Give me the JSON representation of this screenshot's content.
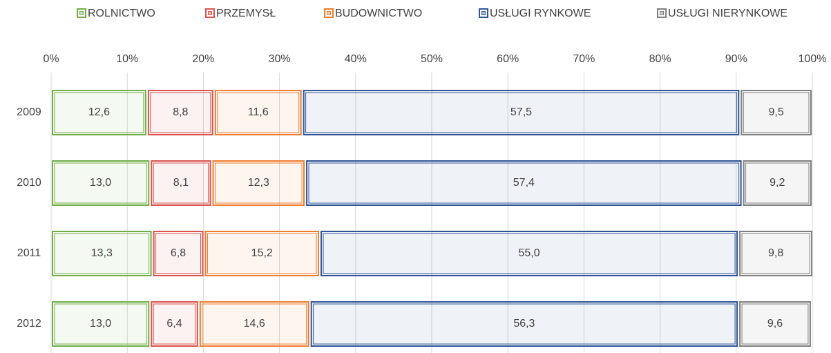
{
  "chart_data": {
    "type": "stacked_bar_horizontal",
    "categories": [
      "2009",
      "2010",
      "2011",
      "2012"
    ],
    "series": [
      {
        "name": "ROLNICTWO",
        "color": "#70ad47",
        "values": [
          12.6,
          13.0,
          13.3,
          13.0
        ],
        "value_labels": [
          "12,6",
          "13,0",
          "13,3",
          "13,0"
        ]
      },
      {
        "name": "PRZEMYSŁ",
        "color": "#d9534f",
        "values": [
          8.8,
          8.1,
          6.8,
          6.4
        ],
        "value_labels": [
          "8,8",
          "8,1",
          "6,8",
          "6,4"
        ]
      },
      {
        "name": "BUDOWNICTWO",
        "color": "#ed7d31",
        "values": [
          11.6,
          12.3,
          15.2,
          14.6
        ],
        "value_labels": [
          "11,6",
          "12,3",
          "15,2",
          "14,6"
        ]
      },
      {
        "name": "USŁUGI RYNKOWE",
        "color": "#2f5597",
        "values": [
          57.5,
          57.4,
          55.0,
          56.3
        ],
        "value_labels": [
          "57,5",
          "57,4",
          "55,0",
          "56,3"
        ]
      },
      {
        "name": "USŁUGI NIERYNKOWE",
        "color": "#7f7f7f",
        "values": [
          9.5,
          9.2,
          9.8,
          9.6
        ],
        "value_labels": [
          "9,5",
          "9,2",
          "9,8",
          "9,6"
        ]
      }
    ],
    "xlim": [
      0,
      100
    ],
    "xticks": [
      {
        "value": 0,
        "label": "0%"
      },
      {
        "value": 10,
        "label": "10%"
      },
      {
        "value": 20,
        "label": "20%"
      },
      {
        "value": 30,
        "label": "30%"
      },
      {
        "value": 40,
        "label": "40%"
      },
      {
        "value": 50,
        "label": "50%"
      },
      {
        "value": 60,
        "label": "60%"
      },
      {
        "value": 70,
        "label": "70%"
      },
      {
        "value": 80,
        "label": "80%"
      },
      {
        "value": 90,
        "label": "90%"
      },
      {
        "value": 100,
        "label": "100%"
      }
    ],
    "grid": true,
    "legend": "top"
  }
}
